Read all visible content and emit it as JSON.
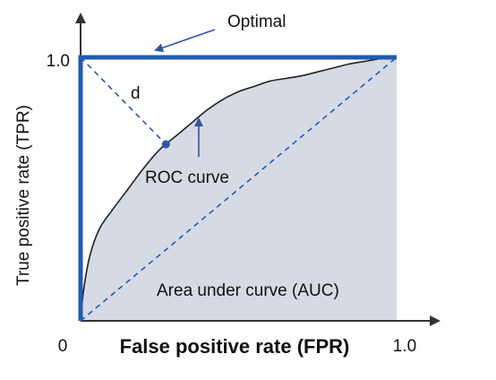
{
  "chart_data": {
    "type": "line",
    "title": "",
    "xlabel": "False positive rate (FPR)",
    "ylabel": "True positive rate (TPR)",
    "xlim": [
      0,
      1
    ],
    "ylim": [
      0,
      1
    ],
    "origin_label": "0",
    "x_end_label": "1.0",
    "y_end_label": "1.0",
    "grid": false,
    "colors": {
      "optimal": "#1f5bb5",
      "annotation": "#2f55a4",
      "roc": "#222222",
      "auc_fill": "#d6dae4",
      "axis": "#333333"
    },
    "series": [
      {
        "name": "ROC curve",
        "x": [
          0,
          0.01,
          0.03,
          0.06,
          0.1,
          0.15,
          0.2,
          0.25,
          0.3,
          0.35,
          0.4,
          0.45,
          0.5,
          0.55,
          0.6,
          0.65,
          0.7,
          0.75,
          0.8,
          0.85,
          0.9,
          0.95,
          1.0
        ],
        "y": [
          0,
          0.12,
          0.25,
          0.35,
          0.42,
          0.5,
          0.58,
          0.65,
          0.7,
          0.75,
          0.8,
          0.84,
          0.87,
          0.89,
          0.91,
          0.92,
          0.93,
          0.945,
          0.96,
          0.975,
          0.985,
          0.995,
          1.0
        ]
      },
      {
        "name": "Optimal",
        "x": [
          0,
          0,
          1
        ],
        "y": [
          0,
          1,
          1
        ]
      }
    ],
    "diagonal": {
      "x": [
        0,
        1
      ],
      "y": [
        0,
        1
      ]
    },
    "distance_line": {
      "from": [
        0,
        1
      ],
      "to": [
        0.27,
        0.67
      ]
    },
    "annotations": {
      "optimal": "Optimal",
      "d": "d",
      "roc_curve": "ROC curve",
      "auc": "Area under curve (AUC)"
    }
  }
}
